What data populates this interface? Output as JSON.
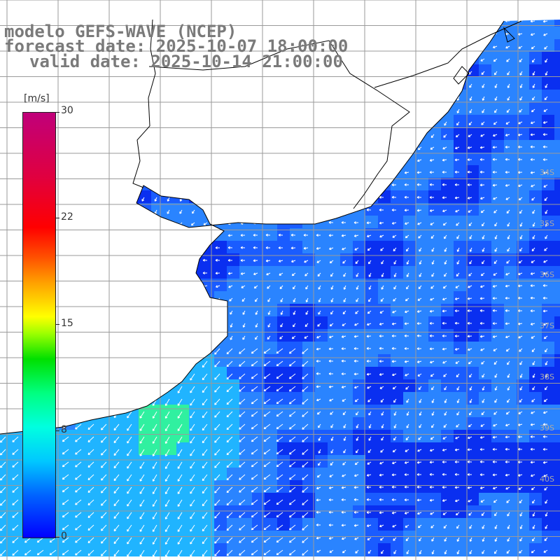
{
  "header": {
    "model_line": "modelo GEFS-WAVE (NCEP)",
    "forecast_line": "forecast date: 2025-10-07 18:00:00",
    "valid_line": "valid date: 2025-10-14 21:00:00"
  },
  "legend": {
    "unit": "[m/s]",
    "ticks": [
      "30",
      "22",
      "15",
      "8",
      "0"
    ],
    "range": [
      0,
      30
    ],
    "colors": [
      "#0000ff",
      "#00c8ff",
      "#00ff80",
      "#ffff00",
      "#ff0000",
      "#c0007a"
    ]
  },
  "map": {
    "lat_labels": [
      "34S",
      "35S",
      "36S",
      "37S",
      "38S",
      "39S",
      "40S"
    ],
    "lat_label_values": [
      -34,
      -35,
      -36,
      -37,
      -38,
      -39,
      -40
    ],
    "land_color": "#ffffff",
    "coast_color": "#000000",
    "grid_color": "#9a9a9a",
    "arrow_color": "#ffffff",
    "field": "wind speed",
    "field_colors": [
      "#0a2ff0",
      "#1a5cff",
      "#2a84ff",
      "#20b4ff",
      "#30f0a0"
    ]
  }
}
